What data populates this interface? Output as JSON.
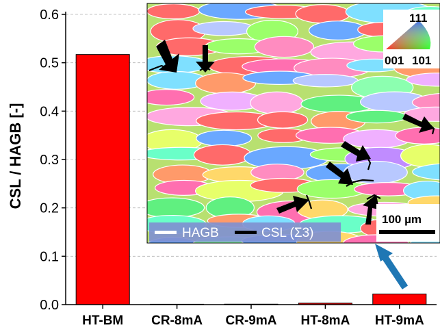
{
  "chart_data": {
    "type": "bar",
    "title": "",
    "xlabel": "",
    "ylabel": "CSL / HAGB [-]",
    "ylim": [
      0,
      0.6
    ],
    "yticks": [
      "0.0",
      "0.1",
      "0.2",
      "0.3",
      "0.4",
      "0.5",
      "0.6"
    ],
    "ytick_values": [
      0,
      0.1,
      0.2,
      0.3,
      0.4,
      0.5,
      0.6
    ],
    "categories": [
      "HT-BM",
      "CR-8mA",
      "CR-9mA",
      "HT-8mA",
      "HT-9mA"
    ],
    "values": [
      0.517,
      0.0,
      0.001,
      0.003,
      0.022
    ],
    "bar_color": "#ff0000",
    "grid": "horizontal dashed",
    "inset": {
      "description_free": true,
      "legend": {
        "hagb": "HAGB",
        "csl": "CSL (Σ3)"
      },
      "scale_bar": "100 µm",
      "ipf_key": {
        "top": "111",
        "left": "001",
        "right": "101"
      },
      "arrow_color": "#1f77b4"
    }
  }
}
